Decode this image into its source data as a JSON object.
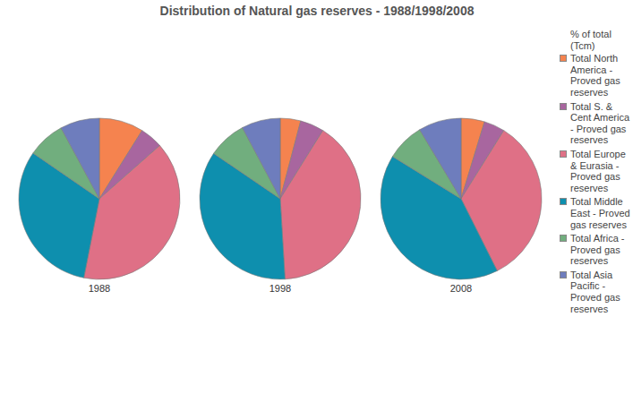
{
  "title": "Distribution of Natural gas reserves - 1988/1998/2008",
  "legend_title": "% of total (Tcm)",
  "chart_data": [
    {
      "type": "pie",
      "title": "1988",
      "categories": [
        "Total North America - Proved gas reserves",
        "Total S. & Cent America - Proved gas reserves",
        "Total Europe & Eurasia - Proved gas reserves",
        "Total Middle East - Proved gas reserves",
        "Total Africa - Proved gas reserves",
        "Total Asia Pacific - Proved gas reserves"
      ],
      "values": [
        8.9,
        4.6,
        39.6,
        31.5,
        7.5,
        7.9
      ],
      "colors": [
        "#f5834f",
        "#a8669f",
        "#df7086",
        "#0e8fae",
        "#71ae7e",
        "#6e7dbd"
      ],
      "legend": "right"
    },
    {
      "type": "pie",
      "title": "1998",
      "categories": [
        "Total North America - Proved gas reserves",
        "Total S. & Cent America - Proved gas reserves",
        "Total Europe & Eurasia - Proved gas reserves",
        "Total Middle East - Proved gas reserves",
        "Total Africa - Proved gas reserves",
        "Total Asia Pacific - Proved gas reserves"
      ],
      "values": [
        4.1,
        4.8,
        40.2,
        35.5,
        7.7,
        7.8
      ],
      "colors": [
        "#f5834f",
        "#a8669f",
        "#df7086",
        "#0e8fae",
        "#71ae7e",
        "#6e7dbd"
      ],
      "legend": "right"
    },
    {
      "type": "pie",
      "title": "2008",
      "categories": [
        "Total North America - Proved gas reserves",
        "Total S. & Cent America - Proved gas reserves",
        "Total Europe & Eurasia - Proved gas reserves",
        "Total Middle East - Proved gas reserves",
        "Total Africa - Proved gas reserves",
        "Total Asia Pacific - Proved gas reserves"
      ],
      "values": [
        4.7,
        4.2,
        33.7,
        41.2,
        7.6,
        8.6
      ],
      "colors": [
        "#f5834f",
        "#a8669f",
        "#df7086",
        "#0e8fae",
        "#71ae7e",
        "#6e7dbd"
      ],
      "legend": "right"
    }
  ]
}
